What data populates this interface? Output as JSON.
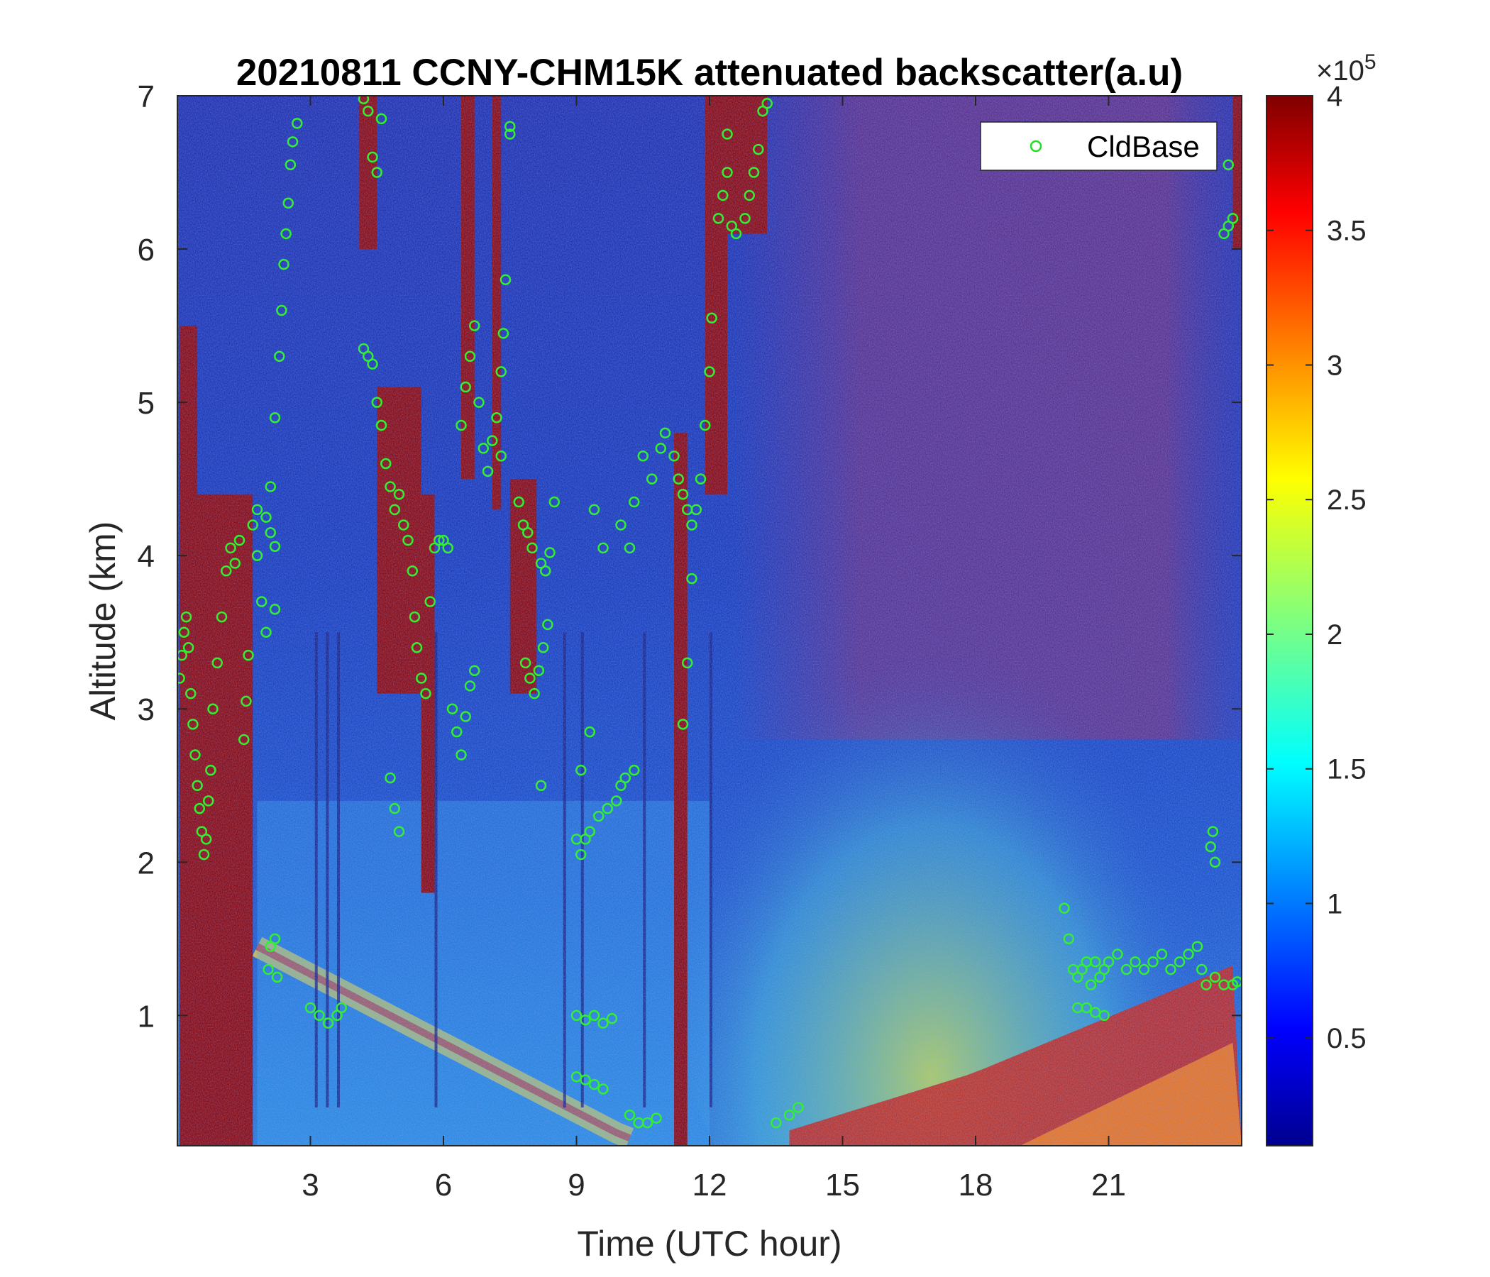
{
  "chart_data": {
    "type": "heatmap",
    "title": "20210811 CCNY-CHM15K attenuated backscatter(a.u)",
    "xlabel": "Time (UTC hour)",
    "ylabel": "Altitude (km)",
    "xlim": [
      0,
      24
    ],
    "ylim": [
      0.15,
      7
    ],
    "x_ticks": [
      3,
      6,
      9,
      12,
      15,
      18,
      21
    ],
    "y_ticks": [
      1,
      2,
      3,
      4,
      5,
      6,
      7
    ],
    "colorbar": {
      "colormap": "jet",
      "clim": [
        0.1,
        4
      ],
      "ticks": [
        0.5,
        1,
        1.5,
        2,
        2.5,
        3,
        3.5,
        4
      ],
      "exponent_label": "×10",
      "exponent_power": "5"
    },
    "legend": {
      "entries": [
        "CldBase"
      ],
      "location": "top-right"
    },
    "series": [
      {
        "name": "CldBase",
        "marker": "circle",
        "color": "#33ee33",
        "points": [
          [
            0.05,
            3.2
          ],
          [
            0.1,
            3.35
          ],
          [
            0.15,
            3.5
          ],
          [
            0.2,
            3.6
          ],
          [
            0.25,
            3.4
          ],
          [
            0.3,
            3.1
          ],
          [
            0.35,
            2.9
          ],
          [
            0.4,
            2.7
          ],
          [
            0.45,
            2.5
          ],
          [
            0.5,
            2.35
          ],
          [
            0.55,
            2.2
          ],
          [
            0.6,
            2.05
          ],
          [
            0.65,
            2.15
          ],
          [
            0.7,
            2.4
          ],
          [
            0.75,
            2.6
          ],
          [
            0.8,
            3.0
          ],
          [
            0.9,
            3.3
          ],
          [
            1.0,
            3.6
          ],
          [
            1.1,
            3.9
          ],
          [
            1.2,
            4.05
          ],
          [
            1.3,
            3.95
          ],
          [
            1.4,
            4.1
          ],
          [
            1.5,
            2.8
          ],
          [
            1.55,
            3.05
          ],
          [
            1.6,
            3.35
          ],
          [
            1.7,
            4.2
          ],
          [
            1.8,
            4.0
          ],
          [
            1.9,
            3.7
          ],
          [
            2.0,
            4.25
          ],
          [
            2.1,
            4.15
          ],
          [
            2.2,
            3.65
          ],
          [
            2.0,
            3.5
          ],
          [
            1.8,
            4.3
          ],
          [
            2.1,
            4.45
          ],
          [
            2.2,
            4.9
          ],
          [
            2.3,
            5.3
          ],
          [
            2.35,
            5.6
          ],
          [
            2.4,
            5.9
          ],
          [
            2.45,
            6.1
          ],
          [
            2.5,
            6.3
          ],
          [
            2.55,
            6.55
          ],
          [
            2.6,
            6.7
          ],
          [
            2.7,
            6.82
          ],
          [
            2.2,
            4.06
          ],
          [
            2.05,
            1.3
          ],
          [
            2.1,
            1.45
          ],
          [
            2.2,
            1.5
          ],
          [
            2.25,
            1.25
          ],
          [
            3.0,
            1.05
          ],
          [
            3.2,
            1.0
          ],
          [
            3.4,
            0.95
          ],
          [
            3.6,
            1.0
          ],
          [
            3.7,
            1.05
          ],
          [
            4.2,
            6.98
          ],
          [
            4.3,
            6.9
          ],
          [
            4.4,
            6.6
          ],
          [
            4.5,
            6.5
          ],
          [
            4.6,
            6.85
          ],
          [
            4.2,
            5.35
          ],
          [
            4.3,
            5.3
          ],
          [
            4.4,
            5.25
          ],
          [
            4.5,
            5.0
          ],
          [
            4.6,
            4.85
          ],
          [
            4.7,
            4.6
          ],
          [
            4.8,
            4.45
          ],
          [
            4.9,
            4.3
          ],
          [
            5.0,
            4.4
          ],
          [
            5.1,
            4.2
          ],
          [
            5.2,
            4.1
          ],
          [
            5.3,
            3.9
          ],
          [
            5.35,
            3.6
          ],
          [
            5.4,
            3.4
          ],
          [
            5.5,
            3.2
          ],
          [
            5.6,
            3.1
          ],
          [
            5.7,
            3.7
          ],
          [
            5.8,
            4.05
          ],
          [
            5.9,
            4.1
          ],
          [
            6.0,
            4.1
          ],
          [
            6.1,
            4.05
          ],
          [
            4.8,
            2.55
          ],
          [
            4.9,
            2.35
          ],
          [
            5.0,
            2.2
          ],
          [
            6.4,
            4.85
          ],
          [
            6.5,
            5.1
          ],
          [
            6.6,
            5.3
          ],
          [
            6.7,
            5.5
          ],
          [
            6.8,
            5.0
          ],
          [
            6.9,
            4.7
          ],
          [
            7.0,
            4.55
          ],
          [
            7.1,
            4.75
          ],
          [
            7.2,
            4.9
          ],
          [
            7.3,
            5.2
          ],
          [
            7.35,
            5.45
          ],
          [
            7.4,
            5.8
          ],
          [
            7.5,
            6.75
          ],
          [
            7.5,
            6.8
          ],
          [
            6.2,
            3.0
          ],
          [
            6.3,
            2.85
          ],
          [
            6.4,
            2.7
          ],
          [
            6.5,
            2.95
          ],
          [
            6.6,
            3.15
          ],
          [
            6.7,
            3.25
          ],
          [
            7.3,
            4.65
          ],
          [
            7.7,
            4.35
          ],
          [
            7.8,
            4.2
          ],
          [
            7.9,
            4.15
          ],
          [
            8.0,
            4.05
          ],
          [
            8.2,
            3.95
          ],
          [
            8.3,
            3.9
          ],
          [
            8.4,
            4.02
          ],
          [
            8.5,
            4.35
          ],
          [
            7.85,
            3.3
          ],
          [
            7.95,
            3.2
          ],
          [
            8.05,
            3.1
          ],
          [
            8.15,
            3.25
          ],
          [
            8.25,
            3.4
          ],
          [
            8.35,
            3.55
          ],
          [
            8.2,
            2.5
          ],
          [
            9.0,
            2.15
          ],
          [
            9.1,
            2.05
          ],
          [
            9.2,
            2.15
          ],
          [
            9.3,
            2.2
          ],
          [
            9.5,
            2.3
          ],
          [
            9.7,
            2.35
          ],
          [
            9.9,
            2.4
          ],
          [
            10.0,
            2.5
          ],
          [
            10.1,
            2.55
          ],
          [
            10.3,
            2.6
          ],
          [
            9.1,
            2.6
          ],
          [
            9.3,
            2.85
          ],
          [
            9.4,
            4.3
          ],
          [
            9.6,
            4.05
          ],
          [
            10.2,
            4.05
          ],
          [
            10.0,
            4.2
          ],
          [
            10.3,
            4.35
          ],
          [
            10.5,
            4.65
          ],
          [
            10.7,
            4.5
          ],
          [
            10.9,
            4.7
          ],
          [
            11.0,
            4.8
          ],
          [
            11.2,
            4.65
          ],
          [
            11.3,
            4.5
          ],
          [
            11.4,
            4.4
          ],
          [
            11.5,
            4.3
          ],
          [
            11.6,
            4.2
          ],
          [
            11.7,
            4.3
          ],
          [
            11.8,
            4.5
          ],
          [
            11.9,
            4.85
          ],
          [
            12.0,
            5.2
          ],
          [
            12.05,
            5.55
          ],
          [
            11.6,
            3.85
          ],
          [
            11.5,
            3.3
          ],
          [
            11.4,
            2.9
          ],
          [
            12.2,
            6.2
          ],
          [
            12.3,
            6.35
          ],
          [
            12.4,
            6.5
          ],
          [
            12.5,
            6.15
          ],
          [
            12.6,
            6.1
          ],
          [
            12.8,
            6.2
          ],
          [
            12.9,
            6.35
          ],
          [
            13.0,
            6.5
          ],
          [
            13.1,
            6.65
          ],
          [
            13.2,
            6.9
          ],
          [
            13.3,
            6.95
          ],
          [
            12.4,
            6.75
          ],
          [
            9.0,
            1.0
          ],
          [
            9.2,
            0.97
          ],
          [
            9.4,
            1.0
          ],
          [
            9.6,
            0.95
          ],
          [
            9.8,
            0.98
          ],
          [
            9.0,
            0.6
          ],
          [
            9.2,
            0.58
          ],
          [
            9.4,
            0.55
          ],
          [
            9.6,
            0.52
          ],
          [
            10.2,
            0.35
          ],
          [
            10.4,
            0.3
          ],
          [
            10.6,
            0.3
          ],
          [
            10.8,
            0.33
          ],
          [
            13.5,
            0.3
          ],
          [
            13.8,
            0.35
          ],
          [
            14.0,
            0.4
          ],
          [
            20.0,
            1.7
          ],
          [
            20.1,
            1.5
          ],
          [
            20.2,
            1.3
          ],
          [
            20.3,
            1.25
          ],
          [
            20.4,
            1.3
          ],
          [
            20.5,
            1.35
          ],
          [
            20.6,
            1.2
          ],
          [
            20.7,
            1.35
          ],
          [
            20.8,
            1.25
          ],
          [
            20.9,
            1.3
          ],
          [
            21.0,
            1.35
          ],
          [
            21.2,
            1.4
          ],
          [
            21.4,
            1.3
          ],
          [
            21.6,
            1.35
          ],
          [
            21.8,
            1.3
          ],
          [
            22.0,
            1.35
          ],
          [
            22.2,
            1.4
          ],
          [
            22.4,
            1.3
          ],
          [
            22.6,
            1.35
          ],
          [
            22.8,
            1.4
          ],
          [
            23.0,
            1.45
          ],
          [
            20.3,
            1.05
          ],
          [
            20.5,
            1.05
          ],
          [
            20.7,
            1.02
          ],
          [
            20.9,
            1.0
          ],
          [
            23.1,
            1.3
          ],
          [
            23.2,
            1.2
          ],
          [
            23.4,
            1.25
          ],
          [
            23.6,
            1.2
          ],
          [
            23.8,
            1.2
          ],
          [
            23.9,
            1.22
          ],
          [
            23.3,
            2.1
          ],
          [
            23.35,
            2.2
          ],
          [
            23.4,
            2.0
          ],
          [
            23.6,
            6.1
          ],
          [
            23.7,
            6.15
          ],
          [
            23.8,
            6.2
          ],
          [
            23.7,
            6.55
          ]
        ]
      }
    ]
  }
}
